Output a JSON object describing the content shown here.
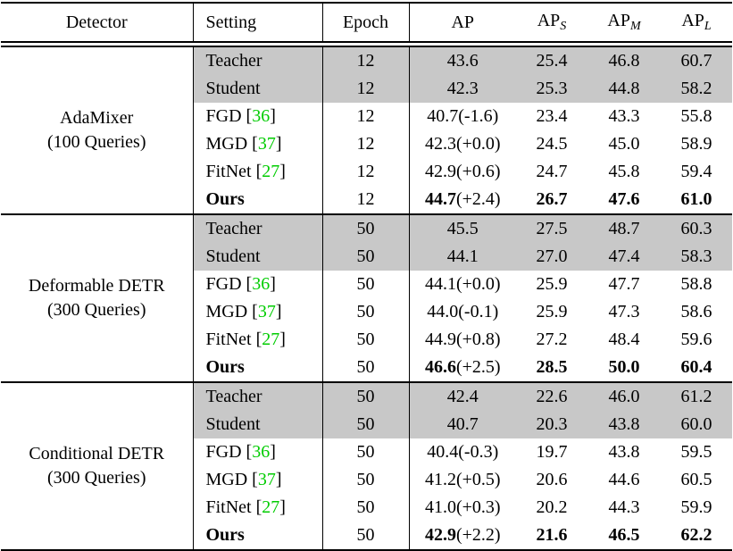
{
  "table": {
    "header": [
      {
        "text": "Detector"
      },
      {
        "text": "Setting"
      },
      {
        "text": "Epoch"
      },
      {
        "text": "AP",
        "sub": ""
      },
      {
        "text": "AP",
        "sub": "S"
      },
      {
        "text": "AP",
        "sub": "M"
      },
      {
        "text": "AP",
        "sub": "L"
      }
    ],
    "cite_brackets": [
      "[",
      "]"
    ],
    "colors": {
      "row_shade": "#c8c8c8",
      "citation_green": "#00cc00",
      "rule_black": "#000000"
    },
    "groups": [
      {
        "detector_line1": "AdaMixer",
        "detector_line2": "(100 Queries)",
        "rows": [
          {
            "setting": "Teacher",
            "cite": "",
            "epoch": "12",
            "ap": "43.6",
            "ap_delta": "",
            "ap_s": "25.4",
            "ap_m": "46.8",
            "ap_l": "60.7",
            "shaded": true,
            "bold": false
          },
          {
            "setting": "Student",
            "cite": "",
            "epoch": "12",
            "ap": "42.3",
            "ap_delta": "",
            "ap_s": "25.3",
            "ap_m": "44.8",
            "ap_l": "58.2",
            "shaded": true,
            "bold": false
          },
          {
            "setting": "FGD",
            "cite": "36",
            "epoch": "12",
            "ap": "40.7",
            "ap_delta": "(-1.6)",
            "ap_s": "23.4",
            "ap_m": "43.3",
            "ap_l": "55.8",
            "shaded": false,
            "bold": false
          },
          {
            "setting": "MGD",
            "cite": "37",
            "epoch": "12",
            "ap": "42.3",
            "ap_delta": "(+0.0)",
            "ap_s": "24.5",
            "ap_m": "45.0",
            "ap_l": "58.9",
            "shaded": false,
            "bold": false
          },
          {
            "setting": "FitNet",
            "cite": "27",
            "epoch": "12",
            "ap": "42.9",
            "ap_delta": "(+0.6)",
            "ap_s": "24.7",
            "ap_m": "45.8",
            "ap_l": "59.4",
            "shaded": false,
            "bold": false
          },
          {
            "setting": "Ours",
            "cite": "",
            "epoch": "12",
            "ap": "44.7",
            "ap_delta": "(+2.4)",
            "ap_s": "26.7",
            "ap_m": "47.6",
            "ap_l": "61.0",
            "shaded": false,
            "bold": true
          }
        ]
      },
      {
        "detector_line1": "Deformable DETR",
        "detector_line2": "(300 Queries)",
        "rows": [
          {
            "setting": "Teacher",
            "cite": "",
            "epoch": "50",
            "ap": "45.5",
            "ap_delta": "",
            "ap_s": "27.5",
            "ap_m": "48.7",
            "ap_l": "60.3",
            "shaded": true,
            "bold": false
          },
          {
            "setting": "Student",
            "cite": "",
            "epoch": "50",
            "ap": "44.1",
            "ap_delta": "",
            "ap_s": "27.0",
            "ap_m": "47.4",
            "ap_l": "58.3",
            "shaded": true,
            "bold": false
          },
          {
            "setting": "FGD",
            "cite": "36",
            "epoch": "50",
            "ap": "44.1",
            "ap_delta": "(+0.0)",
            "ap_s": "25.9",
            "ap_m": "47.7",
            "ap_l": "58.8",
            "shaded": false,
            "bold": false
          },
          {
            "setting": "MGD",
            "cite": "37",
            "epoch": "50",
            "ap": "44.0",
            "ap_delta": "(-0.1)",
            "ap_s": "25.9",
            "ap_m": "47.3",
            "ap_l": "58.6",
            "shaded": false,
            "bold": false
          },
          {
            "setting": "FitNet",
            "cite": "27",
            "epoch": "50",
            "ap": "44.9",
            "ap_delta": "(+0.8)",
            "ap_s": "27.2",
            "ap_m": "48.4",
            "ap_l": "59.6",
            "shaded": false,
            "bold": false
          },
          {
            "setting": "Ours",
            "cite": "",
            "epoch": "50",
            "ap": "46.6",
            "ap_delta": "(+2.5)",
            "ap_s": "28.5",
            "ap_m": "50.0",
            "ap_l": "60.4",
            "shaded": false,
            "bold": true
          }
        ]
      },
      {
        "detector_line1": "Conditional DETR",
        "detector_line2": "(300 Queries)",
        "rows": [
          {
            "setting": "Teacher",
            "cite": "",
            "epoch": "50",
            "ap": "42.4",
            "ap_delta": "",
            "ap_s": "22.6",
            "ap_m": "46.0",
            "ap_l": "61.2",
            "shaded": true,
            "bold": false
          },
          {
            "setting": "Student",
            "cite": "",
            "epoch": "50",
            "ap": "40.7",
            "ap_delta": "",
            "ap_s": "20.3",
            "ap_m": "43.8",
            "ap_l": "60.0",
            "shaded": true,
            "bold": false
          },
          {
            "setting": "FGD",
            "cite": "36",
            "epoch": "50",
            "ap": "40.4",
            "ap_delta": "(-0.3)",
            "ap_s": "19.7",
            "ap_m": "43.8",
            "ap_l": "59.5",
            "shaded": false,
            "bold": false
          },
          {
            "setting": "MGD",
            "cite": "37",
            "epoch": "50",
            "ap": "41.2",
            "ap_delta": "(+0.5)",
            "ap_s": "20.6",
            "ap_m": "44.6",
            "ap_l": "60.5",
            "shaded": false,
            "bold": false
          },
          {
            "setting": "FitNet",
            "cite": "27",
            "epoch": "50",
            "ap": "41.0",
            "ap_delta": "(+0.3)",
            "ap_s": "20.2",
            "ap_m": "44.3",
            "ap_l": "59.9",
            "shaded": false,
            "bold": false
          },
          {
            "setting": "Ours",
            "cite": "",
            "epoch": "50",
            "ap": "42.9",
            "ap_delta": "(+2.2)",
            "ap_s": "21.6",
            "ap_m": "46.5",
            "ap_l": "62.2",
            "shaded": false,
            "bold": true
          }
        ]
      }
    ]
  }
}
